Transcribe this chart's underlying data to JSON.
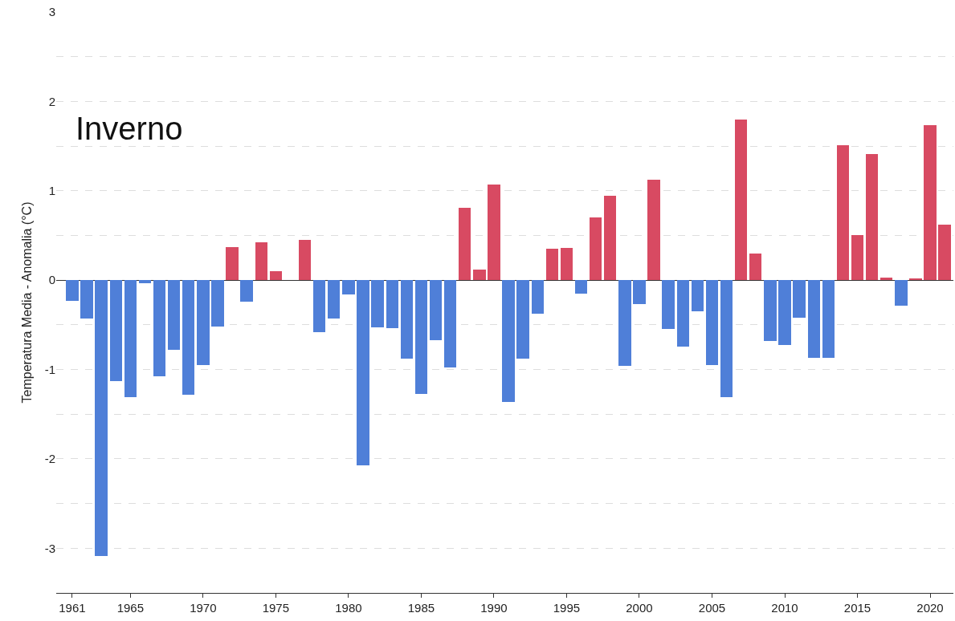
{
  "chart_data": {
    "type": "bar",
    "title": "Inverno",
    "ylabel": "Temperatura Media - Anomalia (°C)",
    "x": [
      1961,
      1962,
      1963,
      1964,
      1965,
      1966,
      1967,
      1968,
      1969,
      1970,
      1971,
      1972,
      1973,
      1974,
      1975,
      1976,
      1977,
      1978,
      1979,
      1980,
      1981,
      1982,
      1983,
      1984,
      1985,
      1986,
      1987,
      1988,
      1989,
      1990,
      1991,
      1992,
      1993,
      1994,
      1995,
      1996,
      1997,
      1998,
      1999,
      2000,
      2001,
      2002,
      2003,
      2004,
      2005,
      2006,
      2007,
      2008,
      2009,
      2010,
      2011,
      2012,
      2013,
      2014,
      2015,
      2016,
      2017,
      2018,
      2019,
      2020,
      2021
    ],
    "values": [
      -0.23,
      -0.43,
      -3.09,
      -1.13,
      -1.31,
      -0.03,
      -1.08,
      -0.78,
      -1.28,
      -0.95,
      -0.52,
      0.37,
      -0.24,
      0.42,
      0.1,
      0,
      0.45,
      -0.58,
      -0.43,
      -0.16,
      -2.07,
      -0.53,
      -0.54,
      -0.88,
      -1.27,
      -0.67,
      -0.98,
      0.81,
      0.12,
      1.07,
      -1.36,
      -0.88,
      -0.38,
      0.35,
      0.36,
      -0.15,
      0.7,
      0.94,
      -0.96,
      -0.27,
      1.12,
      -0.55,
      -0.74,
      -0.35,
      -0.95,
      -1.31,
      1.8,
      0.3,
      -0.68,
      -0.73,
      -0.42,
      -0.87,
      -0.87,
      1.51,
      0.5,
      1.41,
      0.03,
      -0.29,
      0.02,
      1.73,
      0.62
    ],
    "colors": [
      "#4f7fd8",
      "#4f7fd8",
      "#4f7fd8",
      "#4f7fd8",
      "#4f7fd8",
      "#4f7fd8",
      "#4f7fd8",
      "#4f7fd8",
      "#4f7fd8",
      "#4f7fd8",
      "#4f7fd8",
      "#d84a62",
      "#4f7fd8",
      "#d84a62",
      "#d84a62",
      "#d84a62",
      "#d84a62",
      "#4f7fd8",
      "#4f7fd8",
      "#4f7fd8",
      "#4f7fd8",
      "#4f7fd8",
      "#4f7fd8",
      "#4f7fd8",
      "#4f7fd8",
      "#4f7fd8",
      "#4f7fd8",
      "#d84a62",
      "#d84a62",
      "#d84a62",
      "#4f7fd8",
      "#4f7fd8",
      "#4f7fd8",
      "#d84a62",
      "#d84a62",
      "#4f7fd8",
      "#d84a62",
      "#d84a62",
      "#4f7fd8",
      "#4f7fd8",
      "#d84a62",
      "#4f7fd8",
      "#4f7fd8",
      "#4f7fd8",
      "#4f7fd8",
      "#4f7fd8",
      "#d84a62",
      "#d84a62",
      "#4f7fd8",
      "#4f7fd8",
      "#4f7fd8",
      "#4f7fd8",
      "#4f7fd8",
      "#d84a62",
      "#d84a62",
      "#d84a62",
      "#d84a62",
      "#4f7fd8",
      "#d84a62",
      "#d84a62",
      "#d84a62"
    ],
    "xlim": [
      1959.9,
      2021.6
    ],
    "xticks": [
      1961,
      1965,
      1970,
      1975,
      1980,
      1985,
      1990,
      1995,
      2000,
      2005,
      2010,
      2015,
      2020
    ],
    "ylim": [
      -3.5,
      3
    ],
    "yticks": [
      {
        "value": -3.5,
        "label": null
      },
      -3,
      {
        "value": -2.5,
        "label": null
      },
      -2,
      {
        "value": -1.5,
        "label": null
      },
      -1,
      {
        "value": -0.5,
        "label": null
      },
      0,
      {
        "value": 0.5,
        "label": null
      },
      1,
      {
        "value": 1.5,
        "label": null
      },
      2,
      {
        "value": 2.5,
        "label": null
      },
      3
    ],
    "grid": "y"
  }
}
